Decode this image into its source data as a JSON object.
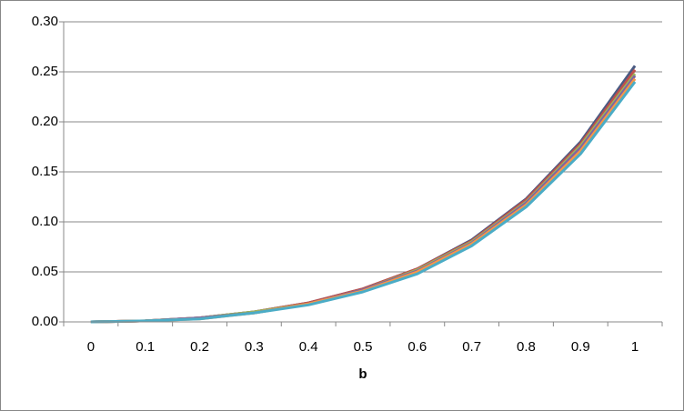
{
  "chart_data": {
    "type": "line",
    "x_label": "b",
    "categories": [
      "0",
      "0.1",
      "0.2",
      "0.3",
      "0.4",
      "0.5",
      "0.6",
      "0.7",
      "0.8",
      "0.9",
      "1"
    ],
    "series": [
      {
        "color": "#4a5a82",
        "values": [
          0,
          0.001,
          0.004,
          0.01,
          0.019,
          0.033,
          0.053,
          0.082,
          0.123,
          0.18,
          0.256
        ]
      },
      {
        "color": "#c0504d",
        "values": [
          0,
          0.001,
          0.004,
          0.01,
          0.019,
          0.033,
          0.053,
          0.081,
          0.122,
          0.178,
          0.252
        ]
      },
      {
        "color": "#9bbb59",
        "values": [
          0,
          0.001,
          0.004,
          0.01,
          0.018,
          0.032,
          0.052,
          0.08,
          0.12,
          0.176,
          0.248
        ]
      },
      {
        "color": "#8064a2",
        "values": [
          0,
          0.001,
          0.004,
          0.009,
          0.018,
          0.032,
          0.051,
          0.079,
          0.119,
          0.174,
          0.246
        ]
      },
      {
        "color": "#f79646",
        "values": [
          0,
          0.001,
          0.003,
          0.009,
          0.018,
          0.031,
          0.05,
          0.078,
          0.117,
          0.171,
          0.243
        ]
      },
      {
        "color": "#4bacc6",
        "values": [
          0,
          0.001,
          0.003,
          0.009,
          0.017,
          0.03,
          0.048,
          0.076,
          0.115,
          0.168,
          0.24
        ]
      }
    ],
    "ylim": [
      0,
      0.3
    ],
    "yticks": [
      {
        "value": 0,
        "label": "0.00"
      },
      {
        "value": 0.05,
        "label": "0.05"
      },
      {
        "value": 0.1,
        "label": "0.10"
      },
      {
        "value": 0.15,
        "label": "0.15"
      },
      {
        "value": 0.2,
        "label": "0.20"
      },
      {
        "value": 0.25,
        "label": "0.25"
      },
      {
        "value": 0.3,
        "label": "0.30"
      }
    ],
    "grid": true
  }
}
